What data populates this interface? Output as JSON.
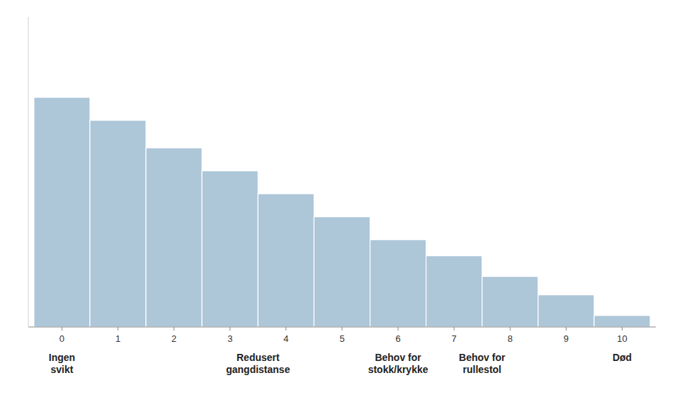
{
  "chart_data": {
    "type": "bar",
    "x": [
      0,
      1,
      2,
      3,
      4,
      5,
      6,
      7,
      8,
      9,
      10
    ],
    "values": [
      10,
      9,
      7.8,
      6.8,
      5.8,
      4.8,
      3.8,
      3.1,
      2.2,
      1.4,
      0.5
    ],
    "color": "#adc6d8",
    "xlim": [
      -0.6,
      10.6
    ],
    "xticks": [
      0,
      1,
      2,
      3,
      4,
      5,
      6,
      7,
      8,
      9,
      10
    ],
    "ylim": [
      0,
      13.5
    ],
    "grid": false,
    "tick_labels": "x",
    "annotations": [
      {
        "x": 0.0,
        "text": "Ingen\nsvikt"
      },
      {
        "x": 3.5,
        "text": "Redusert\ngangdistanse"
      },
      {
        "x": 6.0,
        "text": "Behov for\nstokk/krykke"
      },
      {
        "x": 7.5,
        "text": "Behov for\nrullestol"
      },
      {
        "x": 10.0,
        "text": "Død"
      }
    ]
  }
}
